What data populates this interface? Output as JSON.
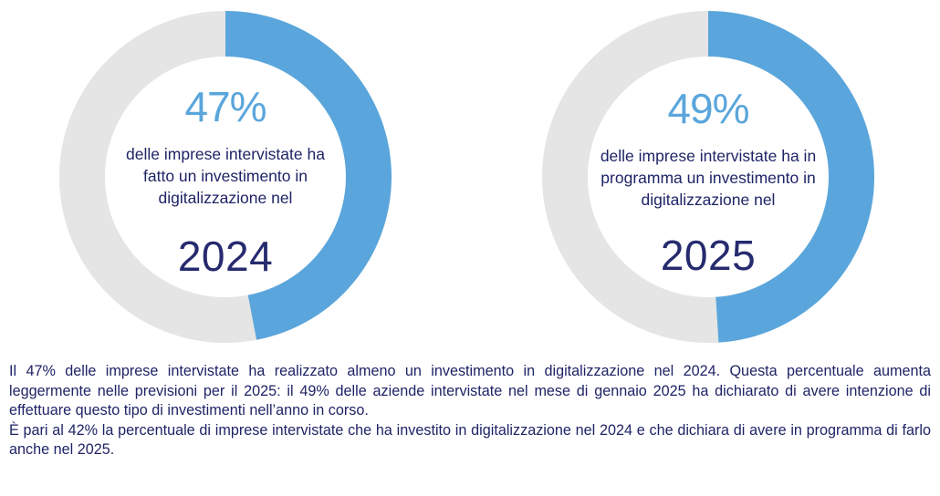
{
  "colors": {
    "accent": "#5aa6dc",
    "track": "#e5e5e5",
    "text_dark": "#1f2466"
  },
  "chart_data": [
    {
      "type": "pie",
      "subtype": "donut",
      "value_percent": 47,
      "remainder_percent": 53,
      "center_value": "47%",
      "description": "delle imprese intervistate ha fatto un investimento in digitalizzazione nel",
      "year": "2024"
    },
    {
      "type": "pie",
      "subtype": "donut",
      "value_percent": 49,
      "remainder_percent": 51,
      "center_value": "49%",
      "description": "delle imprese intervistate ha in programma un investimento in digitalizzazione nel",
      "year": "2025"
    }
  ],
  "summary": {
    "paragraph1": "Il 47% delle imprese intervistate ha realizzato almeno un investimento in digitalizzazione nel 2024. Questa percentuale aumenta leggermente nelle previsioni per il 2025: il 49% delle aziende intervistate nel mese di gennaio 2025 ha dichiarato di avere intenzione di effettuare questo tipo di investimenti nell’anno in corso.",
    "paragraph2": "È pari al 42% la percentuale di imprese intervistate che ha investito in digitalizzazione nel 2024 e che dichiara di avere in programma di farlo anche nel 2025."
  }
}
